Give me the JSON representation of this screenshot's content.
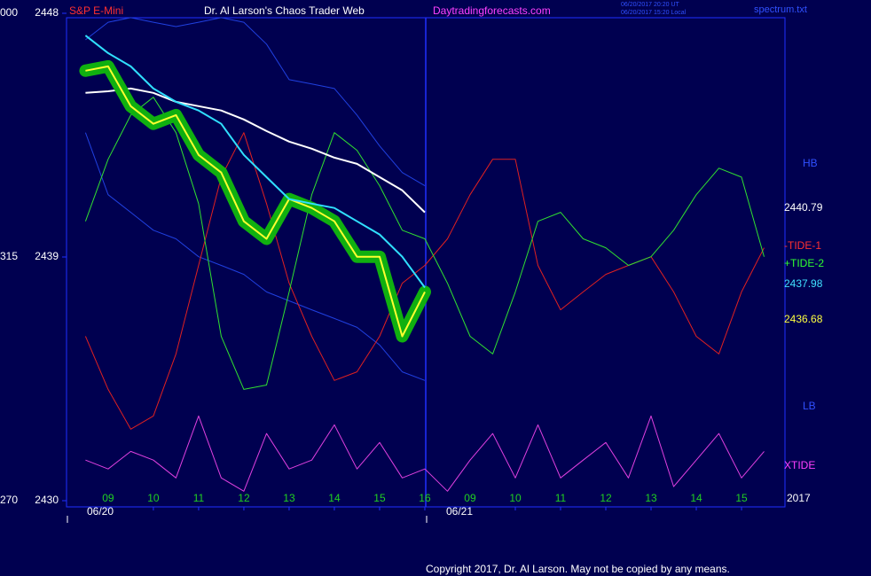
{
  "chart_data": {
    "type": "line",
    "instrument": "S&P E-Mini",
    "title": "Dr. Al Larson's Chaos Trader Web",
    "site": "Daytradingforecasts.com",
    "timestamps": [
      "06/20/2017 20:20 UT",
      "06/20/2017 15:20 Local"
    ],
    "file": "spectrum.txt",
    "copyright": "Copyright 2017, Dr. Al Larson. May not be copied by any means.",
    "year": "2017",
    "left_labels": [
      "000",
      "315",
      "270"
    ],
    "dates": [
      "06/20",
      "06/21"
    ],
    "xlim": [
      -0.92,
      14.96
    ],
    "xticks": [
      {
        "value": 0,
        "label": "09"
      },
      {
        "value": 1,
        "label": "10"
      },
      {
        "value": 2,
        "label": "11"
      },
      {
        "value": 3,
        "label": "12"
      },
      {
        "value": 4,
        "label": "13"
      },
      {
        "value": 5,
        "label": "14"
      },
      {
        "value": 6,
        "label": "15"
      },
      {
        "value": 7,
        "label": "16"
      },
      {
        "value": 8,
        "label": "09"
      },
      {
        "value": 9,
        "label": "10"
      },
      {
        "value": 10,
        "label": "11"
      },
      {
        "value": 11,
        "label": "12"
      },
      {
        "value": 12,
        "label": "13"
      },
      {
        "value": 13,
        "label": "14"
      },
      {
        "value": 14,
        "label": "15"
      }
    ],
    "ylim": [
      2430,
      2448
    ],
    "yticks": [
      2430,
      2439,
      2448
    ],
    "right_labels": [
      {
        "text": "HB",
        "color": "#3050ff"
      },
      {
        "text": "2440.79",
        "color": "#ffffff"
      },
      {
        "text": "-TIDE-1",
        "color": "#ff3030"
      },
      {
        "text": "+TIDE-2",
        "color": "#30ff30"
      },
      {
        "text": "2437.98",
        "color": "#40e0ff"
      },
      {
        "text": "2436.68",
        "color": "#ffff40"
      },
      {
        "text": "LB",
        "color": "#3050ff"
      },
      {
        "text": "XTIDE",
        "color": "#ff40ff"
      }
    ],
    "x": [
      -0.5,
      0,
      0.5,
      1,
      1.5,
      2,
      2.5,
      3,
      3.5,
      4,
      4.5,
      5,
      5.5,
      6,
      6.5,
      7,
      7.5,
      8,
      8.5,
      9,
      9.5,
      10,
      10.5,
      11,
      11.5,
      12,
      12.5,
      13,
      13.5,
      14,
      14.5
    ],
    "series": [
      {
        "color": "#2040e0",
        "width": 1,
        "values": [
          2447.02,
          2447.67,
          2447.84,
          2447.67,
          2447.51,
          2447.67,
          2447.84,
          2447.67,
          2446.86,
          2445.55,
          2445.39,
          2445.22,
          2444.24,
          2443.1,
          2442.12,
          2441.63,
          null,
          null,
          null,
          null,
          null,
          null,
          null,
          null,
          null,
          null,
          null,
          null,
          null,
          null,
          null
        ]
      },
      {
        "color": "#2040e0",
        "width": 1,
        "values": [
          2443.59,
          2441.3,
          2440.65,
          2439.99,
          2439.67,
          2439.01,
          2438.69,
          2438.36,
          2437.71,
          2437.38,
          2437.05,
          2436.73,
          2436.4,
          2435.75,
          2434.76,
          2434.44,
          null,
          null,
          null,
          null,
          null,
          null,
          null,
          null,
          null,
          null,
          null,
          null,
          null,
          null,
          null
        ]
      },
      {
        "color": "#e02020",
        "width": 1,
        "values": [
          2436.07,
          2434.11,
          2432.64,
          2433.13,
          2435.42,
          2438.69,
          2441.95,
          2443.59,
          2440.97,
          2438.03,
          2436.07,
          2434.44,
          2434.76,
          2436.07,
          2438.03,
          2438.69,
          2439.67,
          2441.3,
          2442.61,
          2442.61,
          2438.69,
          2437.05,
          2437.71,
          2438.36,
          2438.69,
          2439.01,
          2437.71,
          2436.07,
          2435.42,
          2437.71,
          2439.34
        ]
      },
      {
        "color": "#30e030",
        "width": 1,
        "values": [
          2440.32,
          2442.61,
          2444.24,
          2444.9,
          2443.59,
          2440.97,
          2436.07,
          2434.11,
          2434.27,
          2437.71,
          2441.3,
          2443.59,
          2442.94,
          2441.63,
          2439.99,
          2439.67,
          2438.03,
          2436.07,
          2435.42,
          2437.71,
          2440.32,
          2440.65,
          2439.67,
          2439.34,
          2438.69,
          2439.01,
          2439.99,
          2441.3,
          2442.28,
          2441.95,
          2439.01
        ]
      },
      {
        "color": "#e040e0",
        "width": 1,
        "values": [
          2431.5,
          2431.17,
          2431.82,
          2431.5,
          2430.84,
          2433.13,
          2430.84,
          2430.35,
          2432.48,
          2431.17,
          2431.5,
          2432.8,
          2431.17,
          2432.15,
          2430.84,
          2431.17,
          2430.35,
          2431.5,
          2432.48,
          2430.84,
          2432.8,
          2430.84,
          2431.5,
          2432.15,
          2430.84,
          2433.13,
          2430.52,
          2431.5,
          2432.48,
          2430.84,
          2431.82
        ]
      },
      {
        "color": "#ffffff",
        "width": 2,
        "values": [
          2445.06,
          2445.12,
          2445.22,
          2445.06,
          2444.73,
          2444.57,
          2444.41,
          2444.08,
          2443.65,
          2443.26,
          2443.0,
          2442.67,
          2442.44,
          2441.95,
          2441.46,
          2440.65,
          null,
          null,
          null,
          null,
          null,
          null,
          null,
          null,
          null,
          null,
          null,
          null,
          null,
          null,
          null
        ]
      },
      {
        "color": "#ffff30",
        "halo": "#10b010",
        "width": 2,
        "values": [
          2445.88,
          2446.04,
          2444.57,
          2443.92,
          2444.24,
          2442.77,
          2442.12,
          2440.32,
          2439.67,
          2441.14,
          2440.81,
          2440.32,
          2439.01,
          2439.01,
          2436.07,
          2437.71,
          null,
          null,
          null,
          null,
          null,
          null,
          null,
          null,
          null,
          null,
          null,
          null,
          null,
          null,
          null
        ]
      },
      {
        "color": "#30e0ff",
        "width": 2,
        "values": [
          2447.18,
          2446.53,
          2446.04,
          2445.22,
          2444.73,
          2444.41,
          2443.92,
          2442.77,
          2441.95,
          2441.14,
          2440.97,
          2440.81,
          2440.32,
          2439.83,
          2439.01,
          2437.87,
          null,
          null,
          null,
          null,
          null,
          null,
          null,
          null,
          null,
          null,
          null,
          null,
          null,
          null,
          null
        ]
      }
    ]
  }
}
